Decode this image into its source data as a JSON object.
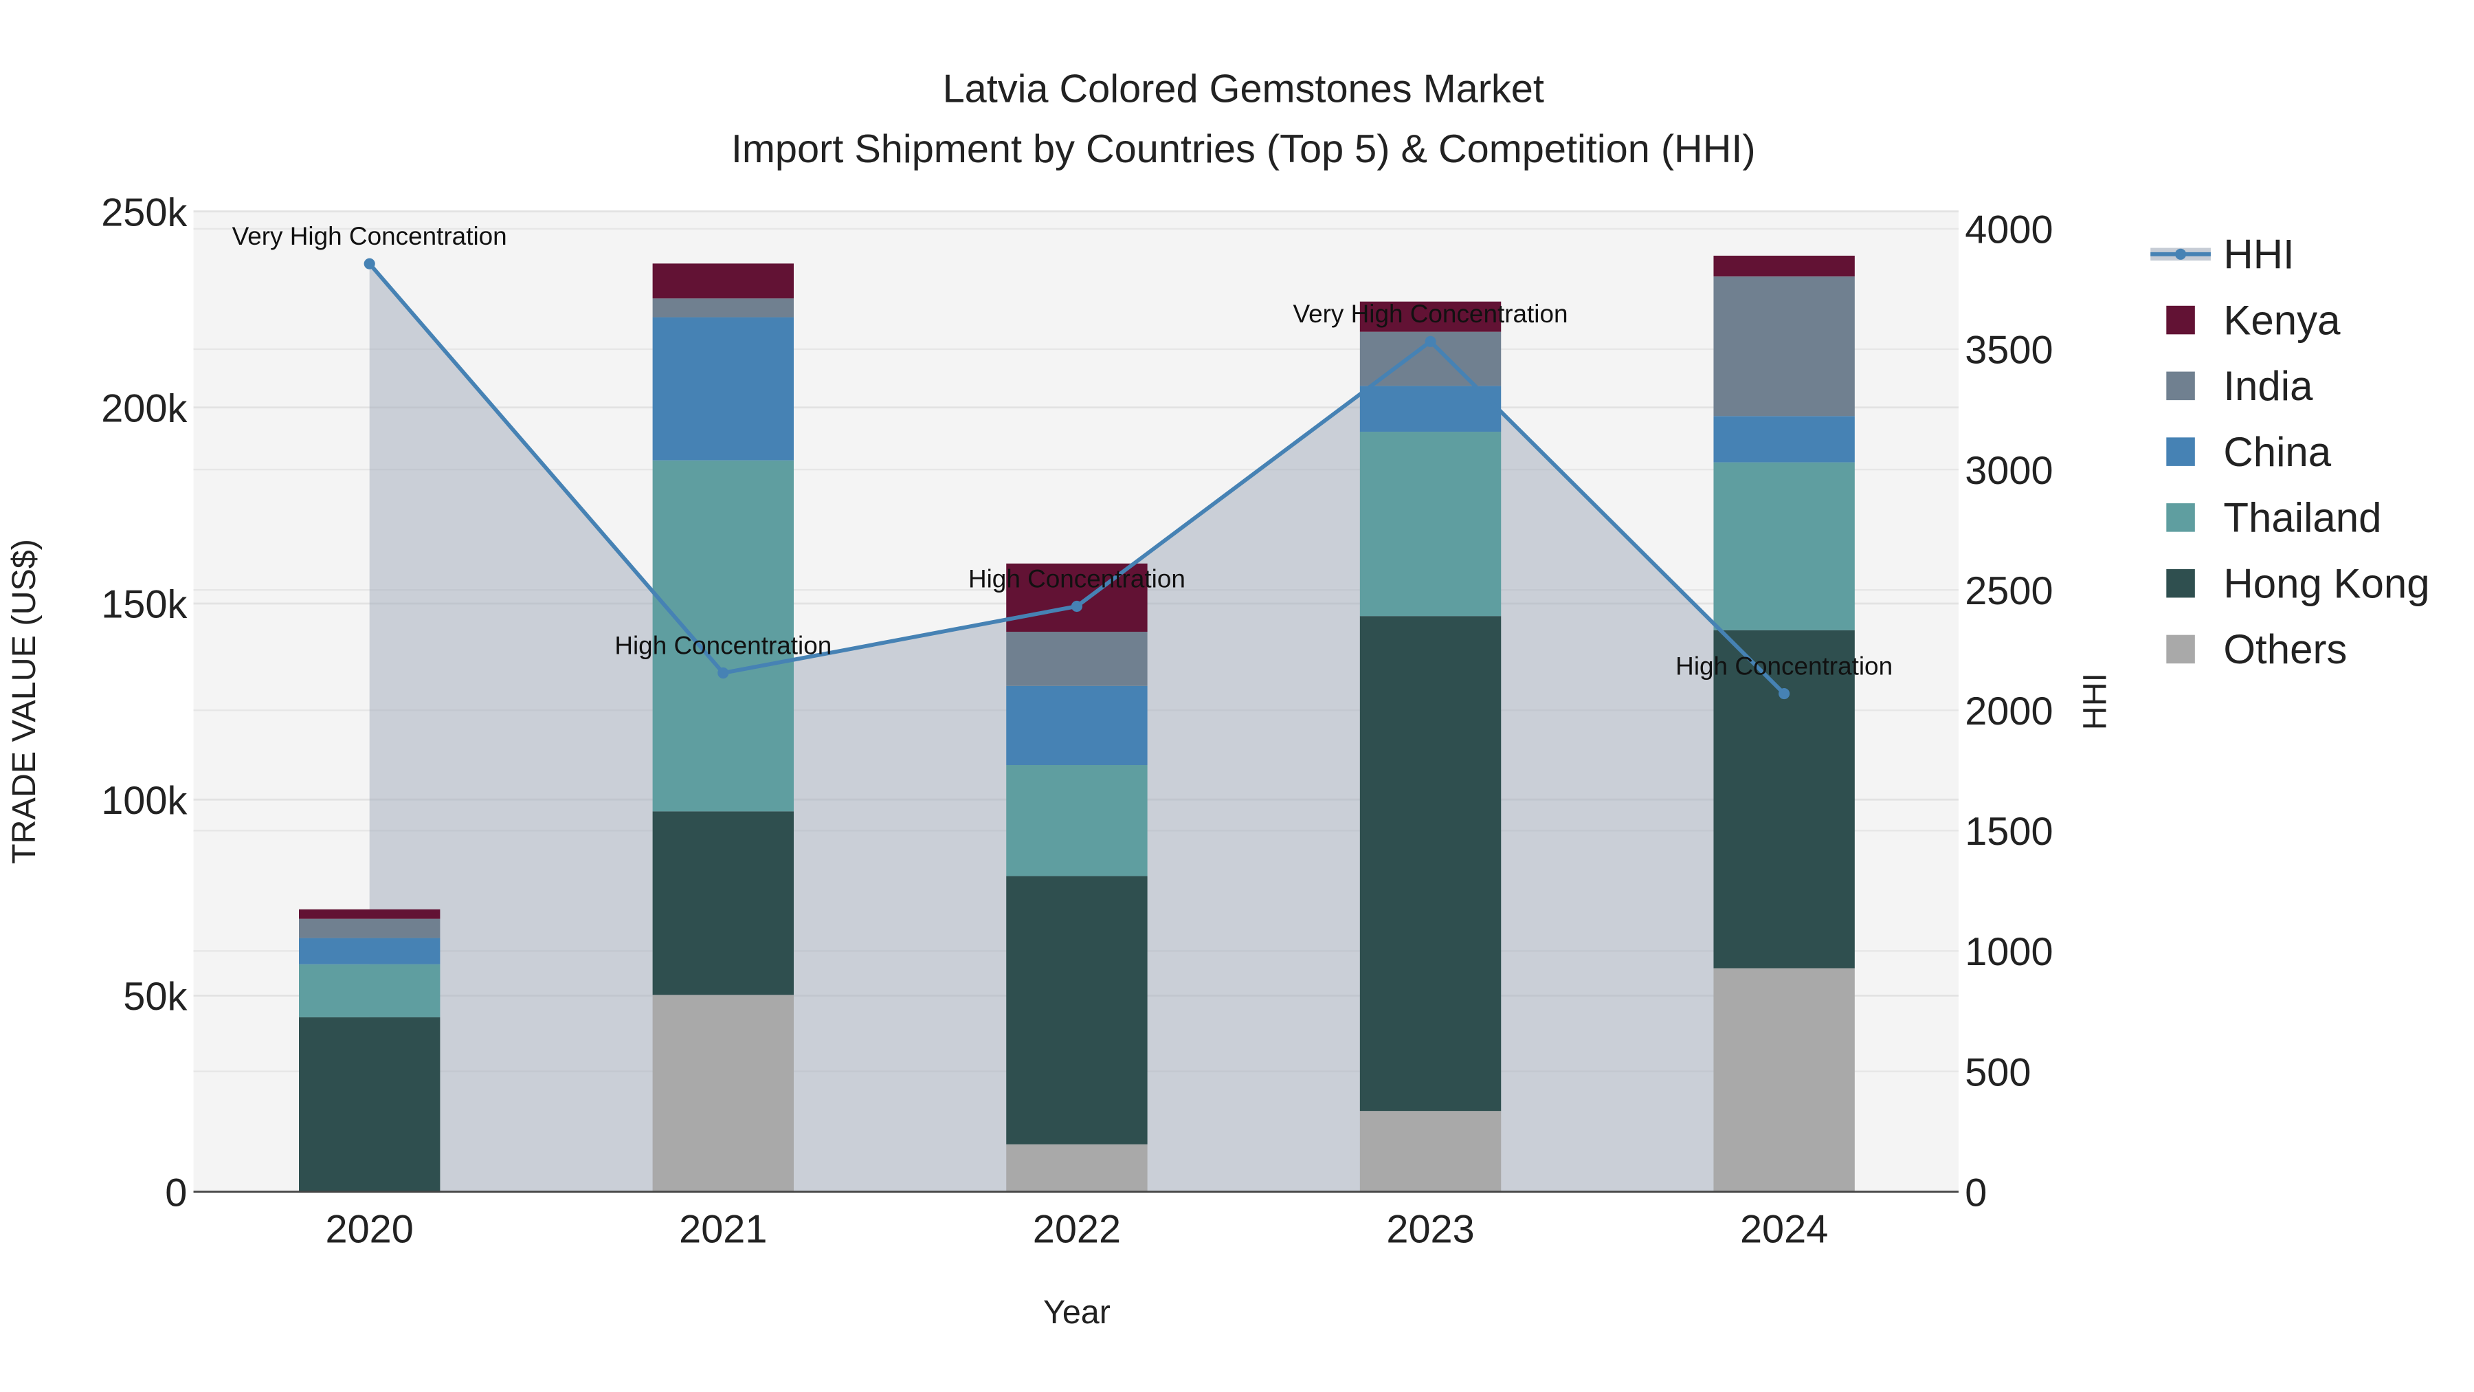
{
  "chart_data": {
    "type": "bar",
    "title": "Latvia Colored Gemstones Market",
    "subtitle": "Import Shipment by Countries (Top 5) & Competition (HHI)",
    "xlabel": "Year",
    "ylabel": "TRADE VALUE (US$)",
    "y2label": "HHI",
    "categories": [
      "2020",
      "2021",
      "2022",
      "2023",
      "2024"
    ],
    "ylim": [
      0,
      250000
    ],
    "y_ticks": [
      0,
      50000,
      100000,
      150000,
      200000,
      250000
    ],
    "y_tick_labels": [
      "0",
      "50k",
      "100k",
      "150k",
      "200k",
      "250k"
    ],
    "y2lim": [
      0,
      4000
    ],
    "y2_ticks": [
      0,
      500,
      1000,
      1500,
      2000,
      2500,
      3000,
      3500,
      4000
    ],
    "y2_tick_labels": [
      "0",
      "500",
      "1000",
      "1500",
      "2000",
      "2500",
      "3000",
      "3500",
      "4000"
    ],
    "grid": true,
    "legend_position": "right",
    "series": [
      {
        "name": "Others",
        "color": "#a9a9a9",
        "values": [
          0,
          50200,
          12100,
          20600,
          57000
        ]
      },
      {
        "name": "Hong Kong",
        "color": "#2f4f4f",
        "values": [
          44500,
          46800,
          68400,
          126200,
          86200
        ]
      },
      {
        "name": "Thailand",
        "color": "#5f9ea0",
        "values": [
          13500,
          89500,
          28300,
          47000,
          42800
        ]
      },
      {
        "name": "China",
        "color": "#4682b4",
        "values": [
          6700,
          36500,
          20200,
          11700,
          11800
        ]
      },
      {
        "name": "India",
        "color": "#708090",
        "values": [
          4900,
          4800,
          13800,
          13800,
          35600
        ]
      },
      {
        "name": "Kenya",
        "color": "#621234",
        "values": [
          2400,
          8900,
          17400,
          7700,
          5300
        ]
      }
    ],
    "legend_order": [
      "HHI",
      "Kenya",
      "India",
      "China",
      "Thailand",
      "Hong Kong",
      "Others"
    ],
    "hhi": {
      "name": "HHI",
      "color": "#4682b4",
      "values": [
        3855,
        2155,
        2432,
        3532,
        2069
      ],
      "annotations": [
        "Very High Concentration",
        "High Concentration",
        "High Concentration",
        "Very High Concentration",
        "High Concentration"
      ]
    }
  }
}
